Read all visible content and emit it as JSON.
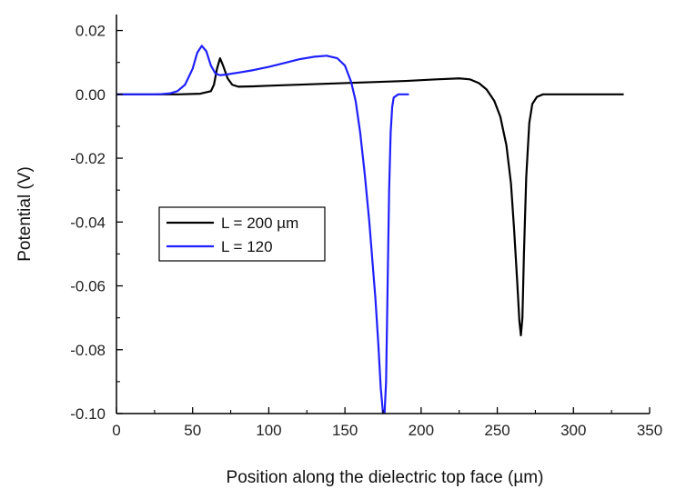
{
  "chart_data": {
    "type": "line",
    "xlabel": "Position along the dielectric  top face (µm)",
    "ylabel": "Potential (V)",
    "xlim": [
      0,
      350
    ],
    "ylim": [
      -0.1,
      0.025
    ],
    "xticks": [
      {
        "value": 0,
        "label": "0"
      },
      {
        "value": 50,
        "label": "50"
      },
      {
        "value": 100,
        "label": "100"
      },
      {
        "value": 150,
        "label": "150"
      },
      {
        "value": 200,
        "label": "200"
      },
      {
        "value": 250,
        "label": "250"
      },
      {
        "value": 300,
        "label": "300"
      },
      {
        "value": 350,
        "label": "350"
      }
    ],
    "yticks": [
      {
        "value": 0.02,
        "label": "0.02"
      },
      {
        "value": 0.0,
        "label": "0.00"
      },
      {
        "value": -0.02,
        "label": "-0.02"
      },
      {
        "value": -0.04,
        "label": "-0.04"
      },
      {
        "value": -0.06,
        "label": "-0.06"
      },
      {
        "value": -0.08,
        "label": "-0.08"
      },
      {
        "value": -0.1,
        "label": "-0.10"
      }
    ],
    "legend_position": "middle-left",
    "series": [
      {
        "name": "L = 200 µm",
        "color": "#000000",
        "x": [
          0,
          40,
          55,
          62,
          64,
          66,
          68,
          70,
          73,
          76,
          80,
          90,
          100,
          130,
          160,
          190,
          210,
          225,
          232,
          238,
          243,
          248,
          252,
          256,
          259,
          261,
          263,
          264.5,
          265.5,
          266.5,
          267.5,
          269,
          271,
          273,
          276,
          280,
          300,
          333
        ],
        "y": [
          0,
          0,
          0.0002,
          0.001,
          0.003,
          0.008,
          0.0113,
          0.009,
          0.005,
          0.003,
          0.0024,
          0.0025,
          0.0027,
          0.0032,
          0.0037,
          0.0042,
          0.0047,
          0.005,
          0.0047,
          0.0035,
          0.0015,
          -0.002,
          -0.007,
          -0.016,
          -0.028,
          -0.042,
          -0.058,
          -0.071,
          -0.0755,
          -0.07,
          -0.05,
          -0.026,
          -0.009,
          -0.003,
          -0.0008,
          0,
          0,
          0
        ]
      },
      {
        "name": "L = 120",
        "color": "#1f1fff",
        "x": [
          0,
          25,
          30,
          35,
          40,
          45,
          50,
          53,
          56,
          59,
          62,
          65,
          68,
          72,
          80,
          90,
          100,
          110,
          120,
          130,
          138,
          145,
          150,
          154,
          157,
          160,
          163,
          166,
          168,
          170,
          172,
          173.5,
          175,
          176,
          177,
          178,
          179,
          180,
          181,
          182,
          185,
          192
        ],
        "y": [
          0,
          0,
          0.0001,
          0.0003,
          0.001,
          0.003,
          0.008,
          0.013,
          0.0152,
          0.0135,
          0.009,
          0.0065,
          0.006,
          0.0062,
          0.0068,
          0.0076,
          0.0086,
          0.0098,
          0.011,
          0.0118,
          0.0121,
          0.0113,
          0.009,
          0.004,
          -0.002,
          -0.012,
          -0.025,
          -0.04,
          -0.052,
          -0.064,
          -0.079,
          -0.092,
          -0.1,
          -0.1,
          -0.09,
          -0.06,
          -0.03,
          -0.012,
          -0.004,
          -0.001,
          0,
          0
        ]
      }
    ]
  }
}
